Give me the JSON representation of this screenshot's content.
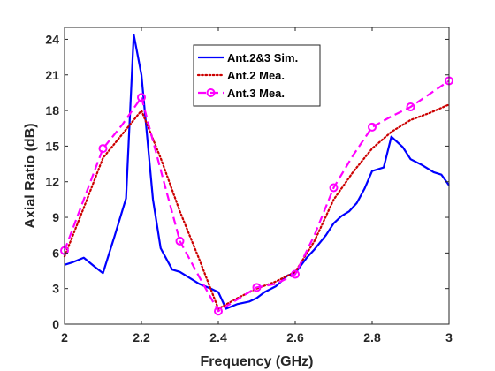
{
  "chart_data": {
    "type": "line",
    "xlabel": "Frequency (GHz)",
    "ylabel": "Axial Ratio (dB)",
    "xlim": [
      2,
      3
    ],
    "ylim": [
      0,
      25
    ],
    "xticks": [
      2,
      2.2,
      2.4,
      2.6,
      2.8,
      3
    ],
    "yticks": [
      0,
      3,
      6,
      9,
      12,
      15,
      18,
      21,
      24
    ],
    "grid": false,
    "legend_position": "top-center",
    "series": [
      {
        "name": "Ant.2&3 Sim.",
        "color": "#0000ff",
        "style": "solid",
        "marker": "none",
        "x": [
          2.0,
          2.02,
          2.05,
          2.08,
          2.1,
          2.13,
          2.16,
          2.18,
          2.2,
          2.23,
          2.25,
          2.28,
          2.3,
          2.32,
          2.35,
          2.38,
          2.4,
          2.42,
          2.45,
          2.48,
          2.5,
          2.52,
          2.55,
          2.58,
          2.6,
          2.63,
          2.65,
          2.68,
          2.7,
          2.72,
          2.74,
          2.76,
          2.78,
          2.8,
          2.83,
          2.85,
          2.88,
          2.9,
          2.93,
          2.96,
          2.98,
          3.0
        ],
        "y": [
          5.0,
          5.2,
          5.6,
          4.8,
          4.3,
          7.4,
          10.6,
          24.4,
          21.0,
          10.5,
          6.4,
          4.6,
          4.4,
          4.0,
          3.4,
          3.0,
          2.7,
          1.3,
          1.7,
          1.9,
          2.2,
          2.7,
          3.2,
          4.1,
          4.3,
          5.6,
          6.3,
          7.5,
          8.5,
          9.1,
          9.5,
          10.2,
          11.4,
          12.9,
          13.2,
          15.8,
          14.9,
          13.9,
          13.4,
          12.8,
          12.6,
          11.7
        ]
      },
      {
        "name": "Ant.2 Mea.",
        "color": "#cc0000",
        "style": "dotted",
        "marker": "none",
        "x": [
          2.0,
          2.05,
          2.1,
          2.15,
          2.2,
          2.25,
          2.3,
          2.35,
          2.4,
          2.45,
          2.5,
          2.55,
          2.6,
          2.65,
          2.7,
          2.75,
          2.8,
          2.85,
          2.9,
          2.95,
          3.0
        ],
        "y": [
          5.7,
          9.8,
          14.0,
          16.0,
          18.0,
          14.0,
          9.5,
          5.5,
          1.3,
          2.2,
          3.0,
          3.6,
          4.4,
          7.0,
          10.5,
          12.8,
          14.8,
          16.2,
          17.2,
          17.8,
          18.5
        ]
      },
      {
        "name": "Ant.3 Mea.",
        "color": "#ff00ff",
        "style": "dashed",
        "marker": "circle",
        "x": [
          2.0,
          2.05,
          2.1,
          2.15,
          2.2,
          2.25,
          2.3,
          2.35,
          2.4,
          2.45,
          2.5,
          2.55,
          2.6,
          2.65,
          2.7,
          2.75,
          2.8,
          2.85,
          2.9,
          2.95,
          3.0
        ],
        "y": [
          6.2,
          10.5,
          14.8,
          16.8,
          19.1,
          13.0,
          7.0,
          4.0,
          1.1,
          2.1,
          3.1,
          3.4,
          4.2,
          7.5,
          11.5,
          14.2,
          16.6,
          17.5,
          18.3,
          19.4,
          20.5
        ]
      }
    ]
  }
}
